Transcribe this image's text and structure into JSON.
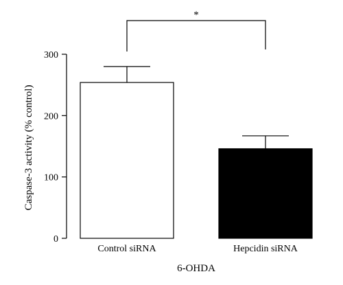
{
  "chart_data": {
    "type": "bar",
    "categories": [
      "Control siRNA",
      "Hepcidin siRNA"
    ],
    "values": [
      254,
      146
    ],
    "errors": [
      26,
      21
    ],
    "bar_colors": [
      "#ffffff",
      "#000000"
    ],
    "bar_edge_color": "#000000",
    "xlabel": "6-OHDA",
    "ylabel": "Caspase-3 activity (% control)",
    "ylim": [
      0,
      300
    ],
    "yticks": [
      "0",
      "100",
      "200",
      "300"
    ],
    "ytick_values": [
      0,
      100,
      200,
      300
    ],
    "grid": false,
    "significance": {
      "label": "*",
      "between": [
        0,
        1
      ]
    }
  }
}
